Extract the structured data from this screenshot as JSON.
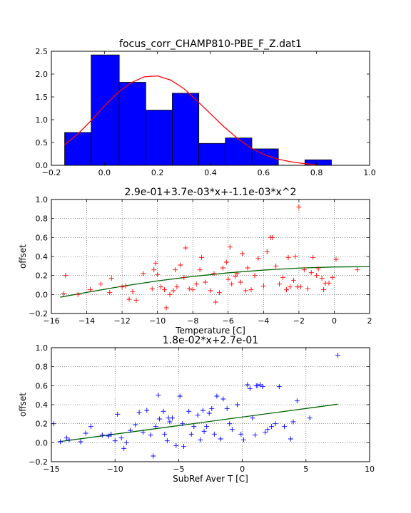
{
  "chart_data": [
    {
      "type": "bar",
      "title": "focus_corr_CHAMP810-PBE_F_Z.dat1",
      "xlabel": "",
      "ylabel": "",
      "xlim": [
        -0.2,
        1.0
      ],
      "ylim": [
        0.0,
        2.5
      ],
      "xticks": [
        "−0.2",
        "0.0",
        "0.2",
        "0.4",
        "0.6",
        "0.8",
        "1.0"
      ],
      "yticks": [
        "0.0",
        "0.5",
        "1.0",
        "1.5",
        "2.0",
        "2.5"
      ],
      "grid": false,
      "bar_color": "#0000ff",
      "bin_edges": [
        -0.15,
        -0.05,
        0.056,
        0.156,
        0.256,
        0.356,
        0.456,
        0.556,
        0.656,
        0.756,
        0.856
      ],
      "values": [
        0.72,
        2.42,
        1.82,
        1.21,
        1.58,
        0.48,
        0.6,
        0.36,
        0.0,
        0.12
      ],
      "fit_color": "#ff0000",
      "fit_curve": {
        "x": [
          -0.15,
          -0.1,
          -0.05,
          0.0,
          0.05,
          0.1,
          0.15,
          0.2,
          0.25,
          0.3,
          0.35,
          0.4,
          0.45,
          0.5,
          0.55,
          0.6,
          0.65,
          0.7,
          0.75,
          0.8
        ],
        "y": [
          0.45,
          0.69,
          0.98,
          1.3,
          1.59,
          1.81,
          1.94,
          1.96,
          1.87,
          1.68,
          1.41,
          1.13,
          0.85,
          0.6,
          0.39,
          0.24,
          0.14,
          0.08,
          0.04,
          0.01
        ]
      }
    },
    {
      "type": "scatter",
      "title": "2.9e-01+3.7e-03*x+-1.1e-03*x^2",
      "xlabel": "Temperature [C]",
      "ylabel": "offset",
      "xlim": [
        -16,
        2
      ],
      "ylim": [
        -0.2,
        1.0
      ],
      "xticks": [
        "−16",
        "−14",
        "−12",
        "−10",
        "−8",
        "−6",
        "−4",
        "−2",
        "0",
        "2"
      ],
      "yticks": [
        "−0.2",
        "0.0",
        "0.2",
        "0.4",
        "0.6",
        "0.8",
        "1.0"
      ],
      "grid": true,
      "marker": "+",
      "marker_color": "#ff0000",
      "line_color": "#006400",
      "points": {
        "x": [
          -15.3,
          -15.2,
          -14.5,
          -13.8,
          -13.2,
          -12.7,
          -12.6,
          -12.0,
          -11.8,
          -11.6,
          -11.4,
          -11.2,
          -10.8,
          -10.3,
          -10.2,
          -10.1,
          -10.0,
          -9.8,
          -9.6,
          -9.5,
          -9.3,
          -9.1,
          -9.0,
          -8.9,
          -8.7,
          -8.5,
          -8.4,
          -8.2,
          -8.0,
          -7.8,
          -7.6,
          -7.5,
          -7.3,
          -7.0,
          -6.8,
          -6.7,
          -6.5,
          -6.3,
          -6.1,
          -6.0,
          -5.9,
          -5.8,
          -5.6,
          -5.5,
          -5.3,
          -5.2,
          -5.0,
          -4.9,
          -4.7,
          -4.5,
          -4.3,
          -4.0,
          -3.8,
          -3.6,
          -3.5,
          -3.3,
          -3.1,
          -2.9,
          -2.7,
          -2.6,
          -2.5,
          -2.3,
          -2.2,
          -2.1,
          -2.0,
          -1.9,
          -1.7,
          -1.5,
          -1.3,
          -1.2,
          -1.0,
          -0.9,
          -0.7,
          -0.6,
          -0.5,
          -0.3,
          -0.1,
          0.1,
          1.3
        ],
        "y": [
          0.01,
          0.2,
          0.0,
          0.05,
          0.11,
          0.02,
          0.17,
          0.08,
          0.09,
          -0.05,
          0.03,
          -0.06,
          0.22,
          0.06,
          0.26,
          0.33,
          0.21,
          0.08,
          0.05,
          -0.14,
          0.0,
          0.04,
          0.26,
          0.08,
          0.31,
          0.18,
          0.49,
          0.06,
          0.05,
          0.11,
          0.26,
          0.39,
          0.13,
          0.04,
          0.22,
          -0.08,
          0.02,
          0.28,
          0.34,
          0.16,
          0.5,
          0.11,
          0.19,
          0.22,
          0.13,
          0.43,
          0.04,
          0.28,
          0.05,
          0.2,
          0.38,
          0.09,
          0.45,
          0.6,
          0.6,
          0.3,
          0.11,
          0.18,
          0.05,
          0.39,
          0.08,
          0.15,
          0.4,
          0.08,
          0.92,
          0.08,
          0.26,
          0.06,
          0.23,
          0.39,
          0.2,
          0.27,
          0.17,
          0.05,
          0.12,
          0.12,
          0.18,
          0.37,
          0.26
        ]
      },
      "fit_curve": {
        "x": [
          -15.5,
          -14,
          -12,
          -10,
          -8,
          -6,
          -4,
          -2,
          0,
          2
        ],
        "y": [
          -0.028,
          0.022,
          0.087,
          0.143,
          0.19,
          0.228,
          0.257,
          0.278,
          0.29,
          0.293
        ]
      }
    },
    {
      "type": "scatter",
      "title": "1.8e-02*x+2.7e-01",
      "xlabel": "SubRef Aver T [C]",
      "ylabel": "offset",
      "xlim": [
        -15,
        10
      ],
      "ylim": [
        -0.2,
        1.0
      ],
      "xticks": [
        "−15",
        "−10",
        "−5",
        "0",
        "5",
        "10"
      ],
      "yticks": [
        "−0.2",
        "0.0",
        "0.2",
        "0.4",
        "0.6",
        "0.8",
        "1.0"
      ],
      "grid": true,
      "marker": "+",
      "marker_color": "#0000ff",
      "line_color": "#006400",
      "points": {
        "x": [
          -14.8,
          -14.3,
          -13.8,
          -13.6,
          -12.7,
          -12.3,
          -11.9,
          -11.0,
          -10.5,
          -10.3,
          -10.0,
          -9.8,
          -9.5,
          -9.3,
          -9.1,
          -8.8,
          -8.4,
          -8.1,
          -7.8,
          -7.5,
          -7.2,
          -7.0,
          -6.8,
          -6.6,
          -6.5,
          -6.2,
          -6.1,
          -5.9,
          -5.8,
          -5.7,
          -5.5,
          -5.2,
          -4.9,
          -4.7,
          -4.6,
          -4.2,
          -4.0,
          -3.8,
          -3.5,
          -3.3,
          -3.1,
          -3.0,
          -2.8,
          -2.6,
          -2.4,
          -2.2,
          -2.0,
          -1.7,
          -1.5,
          -1.2,
          -1.0,
          -0.8,
          -0.4,
          -0.1,
          0.1,
          0.4,
          0.6,
          0.8,
          1.0,
          1.1,
          1.2,
          1.4,
          1.6,
          1.8,
          2.0,
          2.3,
          2.6,
          2.9,
          3.3,
          3.8,
          4.0,
          4.3,
          5.3,
          7.5
        ],
        "y": [
          0.2,
          0.01,
          0.05,
          0.03,
          0.01,
          0.1,
          0.17,
          0.08,
          0.07,
          0.09,
          0.02,
          0.3,
          0.05,
          -0.06,
          0.0,
          0.13,
          0.19,
          0.32,
          0.11,
          0.34,
          0.08,
          -0.14,
          0.17,
          0.5,
          0.25,
          0.33,
          0.09,
          0.02,
          0.26,
          0.22,
          0.26,
          -0.03,
          0.49,
          0.2,
          -0.04,
          0.33,
          0.09,
          0.17,
          0.29,
          0.03,
          0.34,
          0.12,
          0.17,
          0.31,
          0.36,
          0.09,
          0.49,
          0.04,
          0.46,
          0.36,
          0.2,
          0.14,
          0.4,
          0.09,
          0.03,
          0.61,
          0.57,
          0.26,
          0.08,
          0.6,
          0.6,
          0.61,
          0.59,
          0.11,
          0.14,
          0.17,
          0.2,
          0.59,
          0.17,
          0.04,
          0.22,
          0.44,
          0.26,
          0.92
        ]
      },
      "fit_curve": {
        "x": [
          -14.5,
          7.5
        ],
        "y": [
          0.009,
          0.405
        ]
      }
    }
  ]
}
